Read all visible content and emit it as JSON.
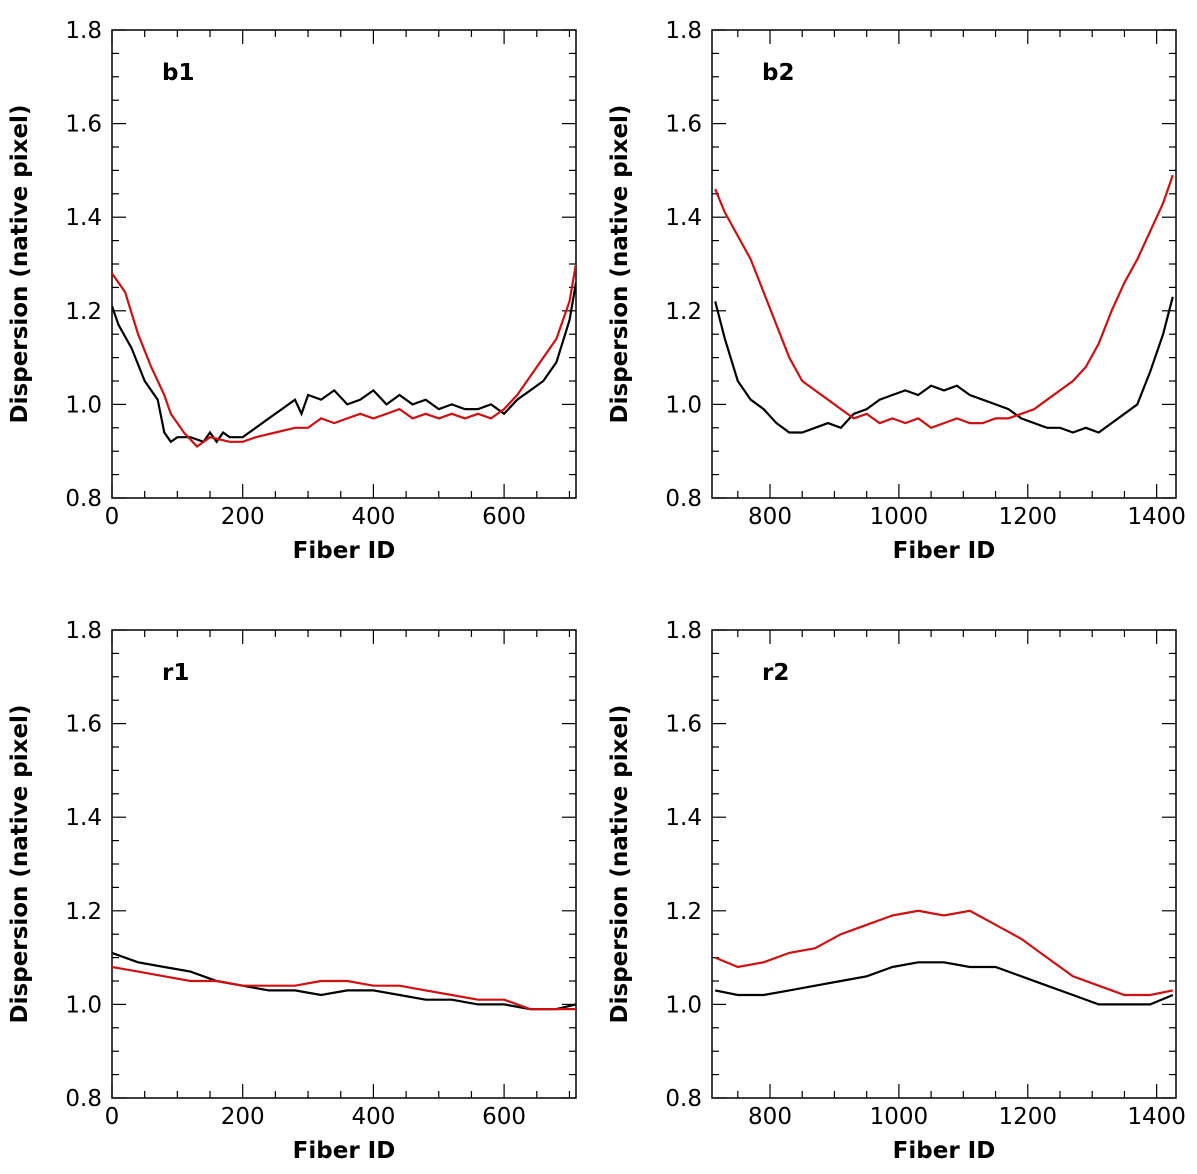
{
  "colors": {
    "series_a": "#000000",
    "series_b": "#d01010"
  },
  "chart_data": [
    {
      "type": "line",
      "panel_label": "b1",
      "xlabel": "Fiber ID",
      "ylabel": "Dispersion (native pixel)",
      "xlim": [
        0,
        710
      ],
      "ylim": [
        0.8,
        1.8
      ],
      "xticks": [
        0,
        200,
        400,
        600
      ],
      "yticks": [
        0.8,
        1.0,
        1.2,
        1.4,
        1.6,
        1.8
      ],
      "series": [
        {
          "name": "black",
          "color": "#000000",
          "x": [
            0,
            10,
            30,
            50,
            70,
            80,
            90,
            100,
            120,
            140,
            150,
            160,
            170,
            180,
            200,
            220,
            240,
            260,
            280,
            290,
            300,
            320,
            340,
            360,
            380,
            400,
            420,
            440,
            460,
            480,
            500,
            520,
            540,
            560,
            580,
            600,
            620,
            640,
            660,
            680,
            700,
            710
          ],
          "y": [
            1.21,
            1.17,
            1.12,
            1.05,
            1.01,
            0.94,
            0.92,
            0.93,
            0.93,
            0.92,
            0.94,
            0.92,
            0.94,
            0.93,
            0.93,
            0.95,
            0.97,
            0.99,
            1.01,
            0.98,
            1.02,
            1.01,
            1.03,
            1.0,
            1.01,
            1.03,
            1.0,
            1.02,
            1.0,
            1.01,
            0.99,
            1.0,
            0.99,
            0.99,
            1.0,
            0.98,
            1.01,
            1.03,
            1.05,
            1.09,
            1.18,
            1.26
          ]
        },
        {
          "name": "red",
          "color": "#d01010",
          "x": [
            0,
            20,
            40,
            60,
            80,
            90,
            100,
            110,
            130,
            150,
            180,
            200,
            220,
            250,
            280,
            300,
            320,
            340,
            360,
            380,
            400,
            420,
            440,
            460,
            480,
            500,
            520,
            540,
            560,
            580,
            600,
            620,
            640,
            660,
            680,
            700,
            710
          ],
          "y": [
            1.28,
            1.24,
            1.15,
            1.08,
            1.02,
            0.98,
            0.96,
            0.94,
            0.91,
            0.93,
            0.92,
            0.92,
            0.93,
            0.94,
            0.95,
            0.95,
            0.97,
            0.96,
            0.97,
            0.98,
            0.97,
            0.98,
            0.99,
            0.97,
            0.98,
            0.97,
            0.98,
            0.97,
            0.98,
            0.97,
            0.99,
            1.02,
            1.06,
            1.1,
            1.14,
            1.22,
            1.3
          ]
        }
      ]
    },
    {
      "type": "line",
      "panel_label": "b2",
      "xlabel": "Fiber ID",
      "ylabel": "Dispersion (native pixel)",
      "xlim": [
        710,
        1430
      ],
      "ylim": [
        0.8,
        1.8
      ],
      "xticks": [
        800,
        1000,
        1200,
        1400
      ],
      "yticks": [
        0.8,
        1.0,
        1.2,
        1.4,
        1.6,
        1.8
      ],
      "series": [
        {
          "name": "black",
          "color": "#000000",
          "x": [
            715,
            730,
            750,
            770,
            790,
            810,
            830,
            850,
            870,
            890,
            910,
            930,
            950,
            970,
            990,
            1010,
            1030,
            1050,
            1070,
            1090,
            1110,
            1130,
            1150,
            1170,
            1190,
            1210,
            1230,
            1250,
            1270,
            1290,
            1310,
            1330,
            1350,
            1370,
            1390,
            1410,
            1425
          ],
          "y": [
            1.22,
            1.14,
            1.05,
            1.01,
            0.99,
            0.96,
            0.94,
            0.94,
            0.95,
            0.96,
            0.95,
            0.98,
            0.99,
            1.01,
            1.02,
            1.03,
            1.02,
            1.04,
            1.03,
            1.04,
            1.02,
            1.01,
            1.0,
            0.99,
            0.97,
            0.96,
            0.95,
            0.95,
            0.94,
            0.95,
            0.94,
            0.96,
            0.98,
            1.0,
            1.07,
            1.15,
            1.23
          ]
        },
        {
          "name": "red",
          "color": "#d01010",
          "x": [
            715,
            730,
            750,
            770,
            790,
            810,
            830,
            850,
            870,
            890,
            910,
            930,
            950,
            970,
            990,
            1010,
            1030,
            1050,
            1070,
            1090,
            1110,
            1130,
            1150,
            1170,
            1190,
            1210,
            1230,
            1250,
            1270,
            1290,
            1310,
            1330,
            1350,
            1370,
            1390,
            1410,
            1425
          ],
          "y": [
            1.46,
            1.41,
            1.36,
            1.31,
            1.24,
            1.17,
            1.1,
            1.05,
            1.03,
            1.01,
            0.99,
            0.97,
            0.98,
            0.96,
            0.97,
            0.96,
            0.97,
            0.95,
            0.96,
            0.97,
            0.96,
            0.96,
            0.97,
            0.97,
            0.98,
            0.99,
            1.01,
            1.03,
            1.05,
            1.08,
            1.13,
            1.2,
            1.26,
            1.31,
            1.37,
            1.43,
            1.49
          ]
        }
      ]
    },
    {
      "type": "line",
      "panel_label": "r1",
      "xlabel": "Fiber ID",
      "ylabel": "Dispersion (native pixel)",
      "xlim": [
        0,
        710
      ],
      "ylim": [
        0.8,
        1.8
      ],
      "xticks": [
        0,
        200,
        400,
        600
      ],
      "yticks": [
        0.8,
        1.0,
        1.2,
        1.4,
        1.6,
        1.8
      ],
      "series": [
        {
          "name": "black",
          "color": "#000000",
          "x": [
            0,
            40,
            80,
            120,
            160,
            200,
            240,
            280,
            320,
            360,
            400,
            440,
            480,
            520,
            560,
            600,
            640,
            680,
            710
          ],
          "y": [
            1.11,
            1.09,
            1.08,
            1.07,
            1.05,
            1.04,
            1.03,
            1.03,
            1.02,
            1.03,
            1.03,
            1.02,
            1.01,
            1.01,
            1.0,
            1.0,
            0.99,
            0.99,
            1.0
          ]
        },
        {
          "name": "red",
          "color": "#d01010",
          "x": [
            0,
            40,
            80,
            120,
            160,
            200,
            240,
            280,
            320,
            360,
            400,
            440,
            480,
            520,
            560,
            600,
            640,
            680,
            710
          ],
          "y": [
            1.08,
            1.07,
            1.06,
            1.05,
            1.05,
            1.04,
            1.04,
            1.04,
            1.05,
            1.05,
            1.04,
            1.04,
            1.03,
            1.02,
            1.01,
            1.01,
            0.99,
            0.99,
            0.99
          ]
        }
      ]
    },
    {
      "type": "line",
      "panel_label": "r2",
      "xlabel": "Fiber ID",
      "ylabel": "Dispersion (native pixel)",
      "xlim": [
        710,
        1430
      ],
      "ylim": [
        0.8,
        1.8
      ],
      "xticks": [
        800,
        1000,
        1200,
        1400
      ],
      "yticks": [
        0.8,
        1.0,
        1.2,
        1.4,
        1.6,
        1.8
      ],
      "series": [
        {
          "name": "black",
          "color": "#000000",
          "x": [
            715,
            750,
            790,
            830,
            870,
            910,
            950,
            990,
            1030,
            1070,
            1110,
            1150,
            1190,
            1230,
            1270,
            1310,
            1350,
            1390,
            1425
          ],
          "y": [
            1.03,
            1.02,
            1.02,
            1.03,
            1.04,
            1.05,
            1.06,
            1.08,
            1.09,
            1.09,
            1.08,
            1.08,
            1.06,
            1.04,
            1.02,
            1.0,
            1.0,
            1.0,
            1.02
          ]
        },
        {
          "name": "red",
          "color": "#d01010",
          "x": [
            715,
            750,
            790,
            830,
            870,
            910,
            950,
            990,
            1030,
            1070,
            1110,
            1150,
            1190,
            1230,
            1270,
            1310,
            1350,
            1390,
            1425
          ],
          "y": [
            1.1,
            1.08,
            1.09,
            1.11,
            1.12,
            1.15,
            1.17,
            1.19,
            1.2,
            1.19,
            1.2,
            1.17,
            1.14,
            1.1,
            1.06,
            1.04,
            1.02,
            1.02,
            1.03
          ]
        }
      ]
    }
  ]
}
